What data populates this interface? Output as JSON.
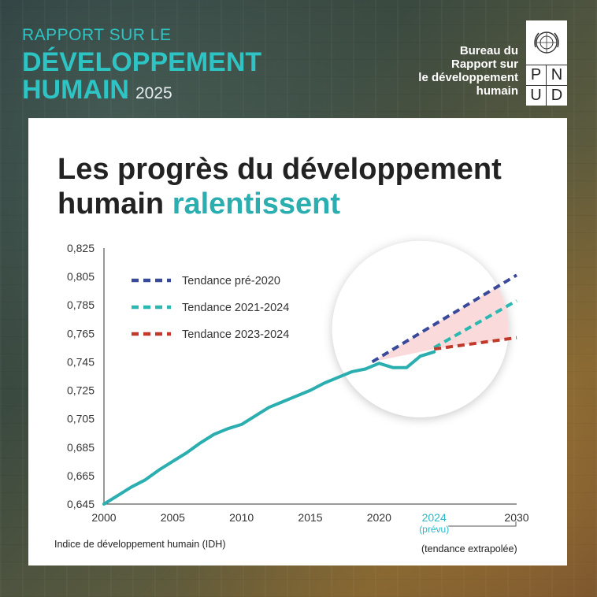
{
  "header": {
    "report_line1": "RAPPORT SUR LE",
    "report_line2": "DÉVELOPPEMENT",
    "report_line3": "HUMAIN",
    "report_year": "2025",
    "office_line1": "Bureau du",
    "office_line2": "Rapport sur",
    "office_line3": "le développement",
    "office_line4": "humain",
    "logo_letters": [
      "P",
      "N",
      "U",
      "D"
    ]
  },
  "title_part1": "Les progrès du développement humain ",
  "title_highlight": "ralentissent",
  "footnote": "Indice de développement humain (IDH)",
  "extrapolated_note": "(tendance extrapolée)",
  "colors": {
    "main_line": "#2aaeb0",
    "pre2020": "#3a4a9a",
    "t2021_2024": "#2ab8b0",
    "t2023_2024": "#c0392b",
    "highlight_text": "#2aaeb0",
    "forecast_year": "#2ab8c8"
  },
  "chart_data": {
    "type": "line",
    "xlim": [
      2000,
      2030
    ],
    "ylim": [
      0.645,
      0.825
    ],
    "x_ticks": [
      "2000",
      "2005",
      "2010",
      "2015",
      "2020",
      "2024",
      "2030"
    ],
    "x_tick_values": [
      2000,
      2005,
      2010,
      2015,
      2020,
      2024,
      2030
    ],
    "forecast_tick": "2024",
    "forecast_sublabel": "(prévu)",
    "y_ticks": [
      "0,825",
      "0,805",
      "0,785",
      "0,765",
      "0,745",
      "0,725",
      "0,705",
      "0,685",
      "0,665",
      "0,645"
    ],
    "y_tick_values": [
      0.825,
      0.805,
      0.785,
      0.765,
      0.745,
      0.725,
      0.705,
      0.685,
      0.665,
      0.645
    ],
    "legend": [
      {
        "label": "Tendance pré-2020",
        "color": "#3a4a9a"
      },
      {
        "label": "Tendance 2021-2024",
        "color": "#2ab8b0"
      },
      {
        "label": "Tendance 2023-2024",
        "color": "#c0392b"
      }
    ],
    "series": [
      {
        "x": [
          2000,
          2001,
          2002,
          2003,
          2004,
          2005,
          2006,
          2007,
          2008,
          2009,
          2010,
          2011,
          2012,
          2013,
          2014,
          2015,
          2016,
          2017,
          2018,
          2019,
          2020,
          2021,
          2022,
          2023,
          2024
        ],
        "values": [
          0.645,
          0.651,
          0.657,
          0.662,
          0.669,
          0.675,
          0.681,
          0.688,
          0.694,
          0.698,
          0.701,
          0.707,
          0.713,
          0.717,
          0.721,
          0.725,
          0.73,
          0.734,
          0.738,
          0.74,
          0.744,
          0.741,
          0.741,
          0.749,
          0.752
        ]
      },
      {
        "name": "Tendance pré-2020",
        "style": "dashed",
        "x": [
          2019.5,
          2030
        ],
        "values": [
          0.745,
          0.806
        ]
      },
      {
        "name": "Tendance 2021-2024",
        "style": "dashed",
        "x": [
          2024,
          2030
        ],
        "values": [
          0.755,
          0.788
        ]
      },
      {
        "name": "Tendance 2023-2024",
        "style": "dashed",
        "x": [
          2024,
          2030
        ],
        "values": [
          0.754,
          0.762
        ]
      }
    ]
  }
}
